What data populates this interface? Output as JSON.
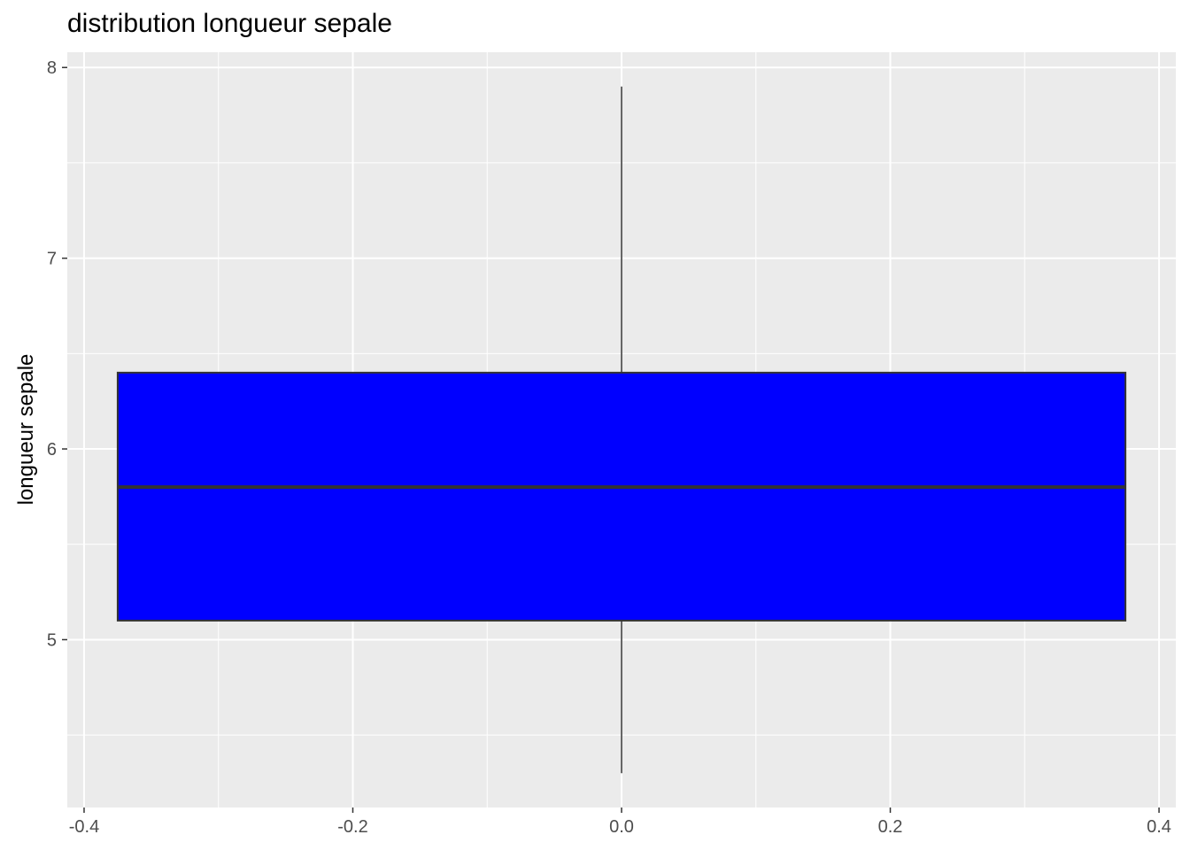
{
  "chart_data": {
    "type": "boxplot",
    "title": "distribution longueur sepale",
    "xlabel": "",
    "ylabel": "longueur sepale",
    "xlim": [
      -0.4125,
      0.4125
    ],
    "ylim": [
      4.12,
      8.08
    ],
    "x_ticks": [
      -0.4,
      -0.2,
      0.0,
      0.2,
      0.4
    ],
    "x_tick_labels": [
      "-0.4",
      "-0.2",
      "0.0",
      "0.2",
      "0.4"
    ],
    "y_ticks": [
      5,
      6,
      7,
      8
    ],
    "y_tick_labels": [
      "5",
      "6",
      "7",
      "8"
    ],
    "box": {
      "x_center": 0.0,
      "x_from": -0.375,
      "x_to": 0.375,
      "whisker_low": 4.3,
      "q1": 5.1,
      "median": 5.8,
      "q3": 6.4,
      "whisker_high": 7.9
    },
    "grid": true,
    "legend": "none",
    "colors": {
      "panel_background": "#ebebeb",
      "grid": "#ffffff",
      "box_fill": "#0000ff",
      "box_outline": "#333333",
      "tick_text": "#4d4d4d",
      "tick_mark": "#333333"
    }
  }
}
